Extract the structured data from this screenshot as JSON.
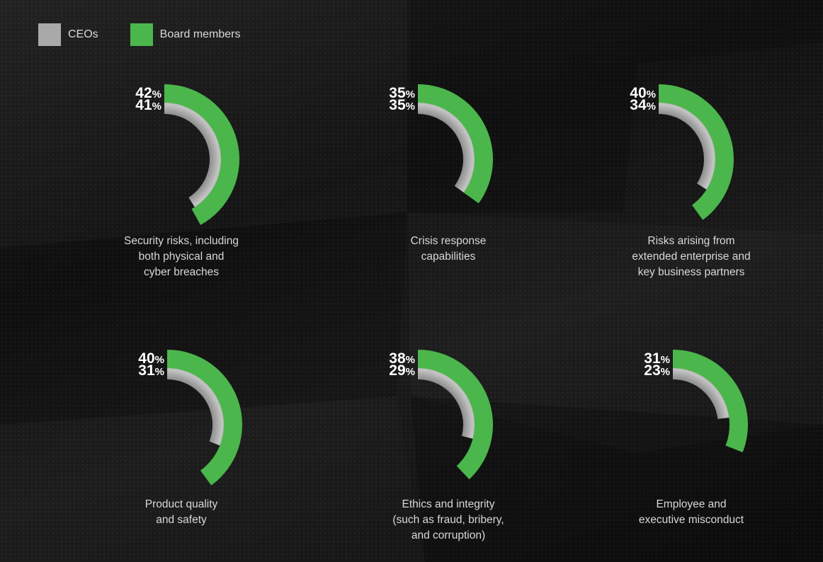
{
  "legend": {
    "items": [
      {
        "label": "CEOs",
        "color": "#a9a9a9"
      },
      {
        "label": "Board members",
        "color": "#4bb64b"
      }
    ]
  },
  "chart_data": [
    {
      "type": "radial-bar",
      "categories": [
        "CEOs",
        "Board members"
      ],
      "values": [
        41,
        42
      ],
      "unit": "%",
      "caption": [
        "Security risks, including",
        "both physical and",
        "cyber breaches"
      ]
    },
    {
      "type": "radial-bar",
      "categories": [
        "CEOs",
        "Board members"
      ],
      "values": [
        35,
        35
      ],
      "unit": "%",
      "caption": [
        "Crisis response",
        "capabilities"
      ]
    },
    {
      "type": "radial-bar",
      "categories": [
        "CEOs",
        "Board members"
      ],
      "values": [
        34,
        40
      ],
      "unit": "%",
      "caption": [
        "Risks arising from",
        "extended enterprise and",
        "key business partners"
      ]
    },
    {
      "type": "radial-bar",
      "categories": [
        "CEOs",
        "Board members"
      ],
      "values": [
        31,
        40
      ],
      "unit": "%",
      "caption": [
        "Product quality",
        "and safety"
      ]
    },
    {
      "type": "radial-bar",
      "categories": [
        "CEOs",
        "Board members"
      ],
      "values": [
        29,
        38
      ],
      "unit": "%",
      "caption": [
        "Ethics and integrity",
        "(such as fraud, bribery,",
        "and corruption)"
      ]
    },
    {
      "type": "radial-bar",
      "categories": [
        "CEOs",
        "Board members"
      ],
      "values": [
        23,
        31
      ],
      "unit": "%",
      "caption": [
        "Employee and",
        "executive misconduct"
      ]
    }
  ]
}
